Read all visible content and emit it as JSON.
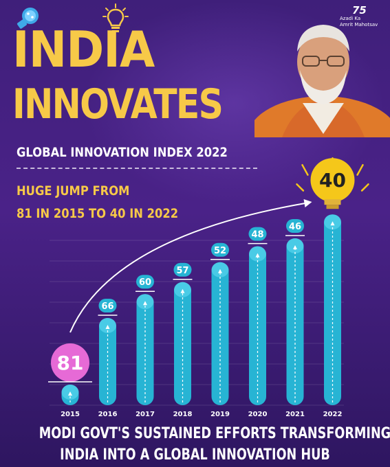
{
  "header": {
    "title_line1": "INDIA",
    "title_line2": "INNOVATES",
    "subtitle": "GLOBAL INNOVATION INDEX  2022",
    "highlight_line1": "HUGE JUMP FROM",
    "highlight_line2": "81 IN 2015 TO 40 IN 2022"
  },
  "brand": {
    "number": "75",
    "line1": "Azadi Ka",
    "line2": "Amrit Mahotsav"
  },
  "chart_data": {
    "type": "bar",
    "categories": [
      "2015",
      "2016",
      "2017",
      "2018",
      "2019",
      "2020",
      "2021",
      "2022"
    ],
    "values": [
      81,
      66,
      60,
      57,
      52,
      48,
      46,
      40
    ],
    "value_meaning": "rank (lower is better)",
    "title": "",
    "xlabel": "",
    "ylabel": "",
    "grid": true,
    "colors": {
      "bar": "#27b4d4",
      "bar_top": "#58d4ee",
      "label_bg": "#27b4d4",
      "first_bubble": "#e66ad6",
      "last_bulb": "#f5c71a"
    }
  },
  "footer": {
    "line1": "MODI GOVT'S SUSTAINED EFFORTS TRANSFORMING",
    "line2": "INDIA INTO A GLOBAL INNOVATION HUB"
  },
  "icons": [
    "innovation-logo-icon",
    "light-bulb-icon",
    "arrow-icon",
    "portrait-image"
  ]
}
